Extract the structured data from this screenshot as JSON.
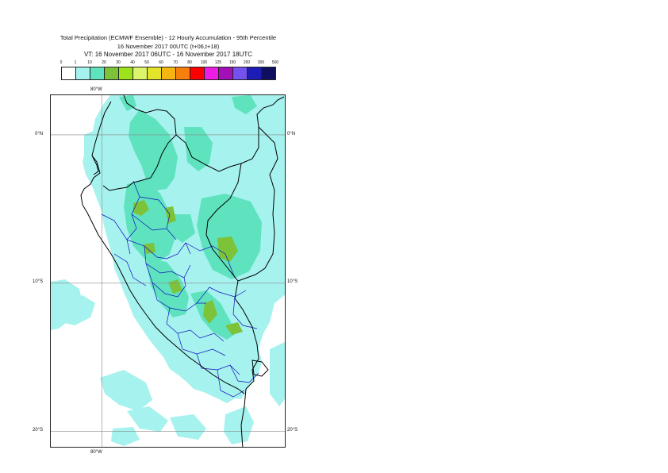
{
  "header": {
    "line1": "Total Precipitation (ECMWF Ensemble) - 12 Hourly Accumulation - 95th Percentile",
    "line2": "16 November 2017 00UTC (t+06,t+18)",
    "line3": "VT: 16 November 2017 06UTC - 16 November 2017 18UTC"
  },
  "legend": {
    "thresholds": [
      "0",
      "1",
      "10",
      "20",
      "30",
      "40",
      "50",
      "60",
      "70",
      "80",
      "100",
      "125",
      "150",
      "200",
      "300",
      "500"
    ],
    "colors": [
      "#ffffff",
      "#a6f2ee",
      "#5fe3bf",
      "#7cc33a",
      "#9de31b",
      "#ddf56b",
      "#e3e32a",
      "#f5b513",
      "#f77f0b",
      "#ff0000",
      "#ee1de6",
      "#a410b8",
      "#7452f0",
      "#1d1db5",
      "#0f0f60"
    ]
  },
  "map": {
    "lon_labels": {
      "top": "80°W",
      "bottom": "80°W"
    },
    "lat_labels": {
      "top": "0°N",
      "middle": "10°S",
      "bottom": "20°S"
    },
    "lon_range": [
      -83.5,
      -67.5
    ],
    "lat_range": [
      3,
      -21.5
    ],
    "gridline_lon": -80,
    "gridline_lats": [
      0,
      -10,
      -20
    ],
    "precip_colors": {
      "light": "#a6f2ee",
      "moderate": "#5fe3bf",
      "heavy": "#7cc33a"
    },
    "border_colors": {
      "country": "#000000",
      "region": "#1010c0"
    }
  }
}
